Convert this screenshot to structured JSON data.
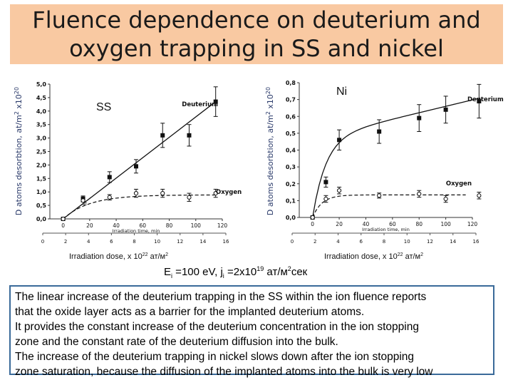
{
  "title": "Fluence dependence on deuterium and oxygen trapping in SS and nickel",
  "params": {
    "ei": "E",
    "ei_sub": "i",
    "ei_rest": " =100 eV, j",
    "ji_sub": "i",
    "ji_rest": " =2x10",
    "ji_exp": "19",
    "ji_unit": " ат/м",
    "ji_unit_exp": "2",
    "ji_tail": "сек"
  },
  "description": [
    "The linear increase of the deuterium trapping in the SS within the ion fluence reports",
    "that the oxide layer acts as a barrier for the implanted deuterium atoms.",
    "It provides the constant increase of the deuterium concentration in the ion stopping",
    "zone and the constant rate of the deuterium diffusion into the bulk.",
    "The increase of the deuterium trapping in nickel slows down after the ion stopping",
    "zone saturation, because the diffusion of the implanted atoms into the bulk is very low"
  ],
  "chart_data": [
    {
      "type": "scatter",
      "panel_label": "SS",
      "ylabel": "D atoms desorbtion, at/m",
      "ylabel_exp": "2",
      "ylabel_mult": " x10",
      "ylabel_mult_exp": "20",
      "xlabel_top": "Irradiation time, min",
      "xlabel_bottom": "Irradiation dose, x 10",
      "xlabel_bottom_exp": "22",
      "xlabel_bottom_unit": " ат/м",
      "xlabel_bottom_unit_exp": "2",
      "xlim_time": [
        0,
        130
      ],
      "xlim_dose": [
        0,
        16
      ],
      "ylim": [
        0,
        5.0
      ],
      "yticks": [
        "0,0",
        "0,5",
        "1,0",
        "1,5",
        "2,0",
        "2,5",
        "3,0",
        "3,5",
        "4,0",
        "4,5",
        "5,0"
      ],
      "xticks_time": [
        "0",
        "20",
        "40",
        "60",
        "80",
        "100",
        "120"
      ],
      "xticks_dose": [
        "0",
        "2",
        "4",
        "6",
        "8",
        "10",
        "12",
        "14",
        "16"
      ],
      "series": [
        {
          "name": "Deuterium",
          "x": [
            0,
            15,
            35,
            55,
            75,
            95,
            115
          ],
          "y": [
            0.0,
            0.75,
            1.55,
            1.95,
            3.1,
            3.1,
            4.35
          ],
          "err": [
            0,
            0.1,
            0.2,
            0.25,
            0.45,
            0.4,
            0.55
          ],
          "color": "#111111"
        },
        {
          "name": "Oxygen",
          "x": [
            0,
            15,
            35,
            55,
            75,
            95,
            115
          ],
          "y": [
            0.0,
            0.68,
            0.8,
            0.95,
            0.95,
            0.8,
            0.95
          ],
          "err": [
            0,
            0.05,
            0.1,
            0.15,
            0.15,
            0.15,
            0.15
          ],
          "color": "#111111"
        }
      ],
      "small_label": "at"
    },
    {
      "type": "scatter",
      "panel_label": "Ni",
      "ylabel": "D atoms desorbtion, at/m",
      "ylabel_exp": "2",
      "ylabel_mult": " x10",
      "ylabel_mult_exp": "20",
      "xlabel_top": "Irradiation time, min",
      "xlabel_bottom": "Irradiation dose, x 10",
      "xlabel_bottom_exp": "22",
      "xlabel_bottom_unit": " ат/м",
      "xlabel_bottom_unit_exp": "2",
      "xlim_time": [
        0,
        130
      ],
      "xlim_dose": [
        0,
        16
      ],
      "ylim": [
        0,
        0.8
      ],
      "yticks": [
        "0,0",
        "0,1",
        "0,2",
        "0,3",
        "0,4",
        "0,5",
        "0,6",
        "0,7",
        "0,8"
      ],
      "xticks_time": [
        "0",
        "20",
        "40",
        "60",
        "80",
        "100",
        "120"
      ],
      "xticks_dose": [
        "0",
        "2",
        "4",
        "6",
        "8",
        "10",
        "12",
        "14",
        "16"
      ],
      "series": [
        {
          "name": "Deuterium",
          "x": [
            0,
            10,
            20,
            50,
            80,
            100,
            125
          ],
          "y": [
            0.0,
            0.21,
            0.46,
            0.51,
            0.59,
            0.64,
            0.69
          ],
          "err": [
            0,
            0.03,
            0.06,
            0.07,
            0.08,
            0.08,
            0.1
          ],
          "color": "#111111"
        },
        {
          "name": "Oxygen",
          "x": [
            0,
            10,
            20,
            50,
            80,
            100,
            125
          ],
          "y": [
            0.0,
            0.11,
            0.16,
            0.13,
            0.14,
            0.11,
            0.13
          ],
          "err": [
            0,
            0.02,
            0.02,
            0.015,
            0.02,
            0.02,
            0.02
          ],
          "color": "#111111"
        }
      ]
    }
  ]
}
